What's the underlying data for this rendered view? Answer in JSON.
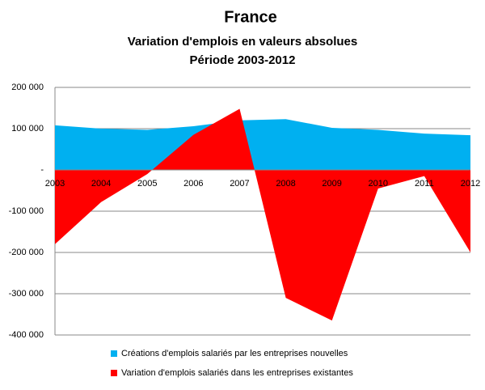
{
  "chart_data": {
    "type": "area",
    "title": "France",
    "subtitle": [
      "Variation d'emplois en valeurs absolues",
      "Période 2003-2012"
    ],
    "categories": [
      "2003",
      "2004",
      "2005",
      "2006",
      "2007",
      "2008",
      "2009",
      "2010",
      "2011",
      "2012"
    ],
    "series": [
      {
        "name": "Créations d'emplois salariés par les entreprises nouvelles",
        "color": "#00b0f0",
        "values": [
          108000,
          100000,
          97000,
          106000,
          120000,
          123000,
          102000,
          97000,
          88000,
          84000
        ]
      },
      {
        "name": "Variation d'emplois salariés dans les entreprises existantes",
        "color": "#ff0000",
        "values": [
          -180000,
          -78000,
          -10000,
          85000,
          148000,
          -310000,
          -365000,
          -45000,
          -15000,
          -200000
        ]
      }
    ],
    "ylim": [
      -400000,
      200000
    ],
    "yticks": [
      {
        "value": -400000,
        "label": "-400 000"
      },
      {
        "value": -300000,
        "label": "-300 000"
      },
      {
        "value": -200000,
        "label": "-200 000"
      },
      {
        "value": -100000,
        "label": "-100 000"
      },
      {
        "value": 0,
        "label": "-"
      },
      {
        "value": 100000,
        "label": "100 000"
      },
      {
        "value": 200000,
        "label": "200 000"
      }
    ],
    "grid": true
  }
}
